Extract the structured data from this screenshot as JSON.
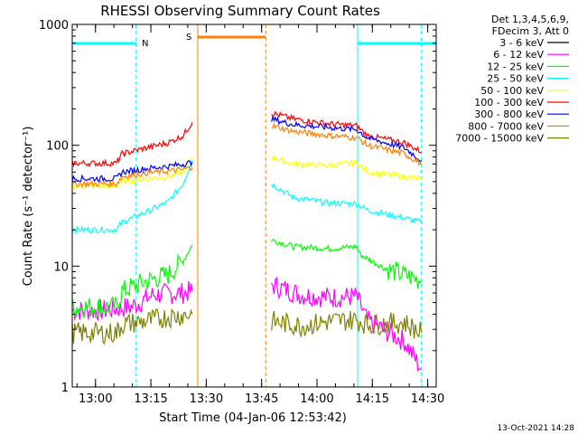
{
  "chart_data": {
    "type": "line",
    "title": "RHESSI Observing Summary Count Rates",
    "xlabel": "Start Time (04-Jan-06 12:53:42)",
    "ylabel": "Count Rate (s⁻¹ detector⁻¹)",
    "yscale": "log",
    "ylim": [
      1,
      1000
    ],
    "xlim_minutes": [
      0,
      98.6
    ],
    "x_tick_labels": [
      "13:00",
      "13:15",
      "13:30",
      "13:45",
      "14:00",
      "14:15",
      "14:30"
    ],
    "y_tick_labels": [
      "1",
      "10",
      "100",
      "1000"
    ],
    "footer": "13-Oct-2021 14:28",
    "legend_header": [
      "Det 1,3,4,5,6,9,",
      "FDecim 3, Att 0"
    ],
    "grid": false,
    "legend_position": "right",
    "markers": [
      {
        "label": "N",
        "color": "#00ffff",
        "bars": [
          [
            0,
            17.3
          ],
          [
            77.3,
            98.6
          ]
        ],
        "vlines": [
          {
            "t": 0,
            "style": "solid"
          },
          {
            "t": 17.3,
            "style": "dashed"
          },
          {
            "t": 77.3,
            "style": "solid"
          },
          {
            "t": 94.6,
            "style": "dashed"
          }
        ]
      },
      {
        "label": "S",
        "color": "#ff7f00",
        "bars": [
          [
            34,
            52.4
          ]
        ],
        "vlines": [
          {
            "t": 34,
            "style": "solid"
          },
          {
            "t": 52.4,
            "style": "dashed"
          }
        ]
      }
    ],
    "series": [
      {
        "name": "3 - 6 keV",
        "color": "#000000",
        "segments": []
      },
      {
        "name": "6 - 12 keV",
        "color": "#ff00ff",
        "segments": [
          {
            "t": [
              0,
              8,
              16,
              22,
              30,
              32.5
            ],
            "v": [
              4.3,
              4.3,
              4.6,
              5.8,
              6.0,
              6.2
            ]
          },
          {
            "t": [
              54,
              62,
              70,
              77,
              80,
              90,
              94.6
            ],
            "v": [
              7.0,
              5.8,
              5.5,
              5.6,
              3.5,
              2.4,
              1.4
            ]
          }
        ]
      },
      {
        "name": "12 - 25 keV",
        "color": "#00ff00",
        "segments": [
          {
            "t": [
              0,
              12,
              13.5,
              20,
              26,
              30,
              32.5
            ],
            "v": [
              4.6,
              4.6,
              6.2,
              7.5,
              8.5,
              11.0,
              15.0
            ]
          },
          {
            "t": [
              54,
              60,
              70,
              77,
              78,
              85,
              94.6
            ],
            "v": [
              16.5,
              14.5,
              14.0,
              14.5,
              12.5,
              9.5,
              7.6
            ]
          }
        ]
      },
      {
        "name": "25 - 50 keV",
        "color": "#00ffff",
        "segments": [
          {
            "t": [
              0,
              12,
              13.5,
              20,
              26,
              30,
              32.5
            ],
            "v": [
              20,
              20,
              23,
              28,
              34,
              48,
              75
            ]
          },
          {
            "t": [
              54,
              60,
              70,
              77,
              80,
              90,
              94.6
            ],
            "v": [
              48,
              37,
              33,
              33,
              29,
              25,
              23
            ]
          }
        ]
      },
      {
        "name": "50 - 100 keV",
        "color": "#ffff00",
        "segments": [
          {
            "t": [
              0,
              12,
              13.5,
              20,
              26,
              30,
              32.5
            ],
            "v": [
              46,
              46,
              50,
              53,
              55,
              60,
              80
            ]
          },
          {
            "t": [
              54,
              60,
              70,
              77,
              80,
              90,
              94.6
            ],
            "v": [
              80,
              70,
              68,
              72,
              60,
              55,
              52
            ]
          }
        ]
      },
      {
        "name": "100 - 300 keV",
        "color": "#ff0000",
        "segments": [
          {
            "t": [
              0,
              12,
              13.5,
              20,
              26,
              30,
              32.5
            ],
            "v": [
              71,
              71,
              85,
              95,
              105,
              120,
              155
            ]
          },
          {
            "t": [
              54,
              60,
              70,
              77,
              80,
              90,
              94.6
            ],
            "v": [
              185,
              165,
              150,
              145,
              120,
              105,
              88
            ]
          }
        ]
      },
      {
        "name": "300 - 800 keV",
        "color": "#0000ff",
        "segments": [
          {
            "t": [
              0,
              12,
              13.5,
              20,
              26,
              30,
              32.5
            ],
            "v": [
              53,
              53,
              60,
              64,
              67,
              70,
              72
            ]
          },
          {
            "t": [
              54,
              60,
              70,
              77,
              80,
              90,
              94.6
            ],
            "v": [
              165,
              148,
              140,
              135,
              115,
              95,
              75
            ]
          }
        ]
      },
      {
        "name": "800 - 7000 keV",
        "color": "#ff7f00",
        "segments": [
          {
            "t": [
              0,
              12,
              13.5,
              20,
              26,
              30,
              32.5
            ],
            "v": [
              48,
              48,
              55,
              59,
              61,
              63,
              66
            ]
          },
          {
            "t": [
              54,
              60,
              70,
              77,
              80,
              90,
              94.6
            ],
            "v": [
              145,
              130,
              120,
              116,
              100,
              85,
              70
            ]
          }
        ]
      },
      {
        "name": "7000 - 15000 keV",
        "color": "#808000",
        "segments": [
          {
            "t": [
              0,
              12,
              13.5,
              20,
              26,
              32.5
            ],
            "v": [
              2.8,
              2.8,
              3.3,
              3.5,
              3.8,
              4.0
            ]
          },
          {
            "t": [
              54,
              62,
              70,
              77,
              80,
              90,
              94.6
            ],
            "v": [
              3.5,
              3.2,
              3.5,
              3.6,
              3.3,
              3.4,
              2.8
            ]
          }
        ]
      }
    ]
  }
}
